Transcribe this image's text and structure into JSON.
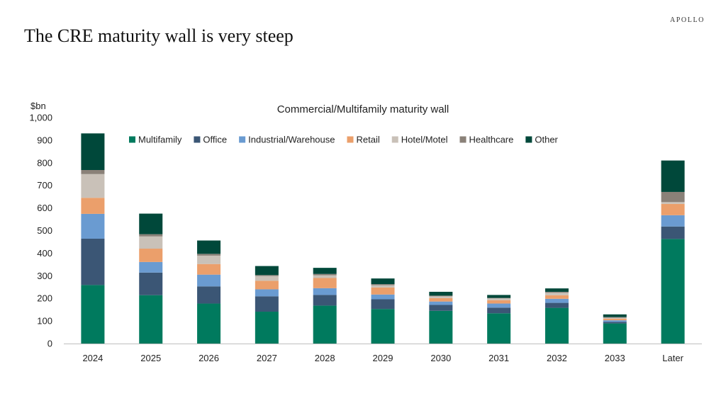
{
  "brand": "APOLLO",
  "slide_title": "The CRE maturity wall is very steep",
  "chart_data": {
    "type": "bar",
    "stacked": true,
    "title": "Commercial/Multifamily maturity wall",
    "ylabel": "$bn",
    "ylim": [
      0,
      1000
    ],
    "yticks": [
      0,
      100,
      200,
      300,
      400,
      500,
      600,
      700,
      800,
      900,
      1000
    ],
    "ytick_labels": [
      "0",
      "100",
      "200",
      "300",
      "400",
      "500",
      "600",
      "700",
      "800",
      "900",
      "1,000"
    ],
    "legend_position": "top",
    "categories": [
      "2024",
      "2025",
      "2026",
      "2027",
      "2028",
      "2029",
      "2030",
      "2031",
      "2032",
      "2033",
      "Later"
    ],
    "series": [
      {
        "name": "Multifamily",
        "color": "#007A5E",
        "values": [
          259,
          214,
          177,
          141,
          168,
          153,
          145,
          134,
          158,
          89,
          463
        ]
      },
      {
        "name": "Office",
        "color": "#3B5675",
        "values": [
          205,
          100,
          76,
          68,
          47,
          43,
          26,
          25,
          22,
          7,
          55
        ]
      },
      {
        "name": "Industrial/Warehouse",
        "color": "#6A9BD1",
        "values": [
          110,
          47,
          52,
          31,
          30,
          21,
          15,
          18,
          18,
          7,
          50
        ]
      },
      {
        "name": "Retail",
        "color": "#EB9F6B",
        "values": [
          71,
          59,
          47,
          38,
          45,
          31,
          15,
          15,
          16,
          7,
          50
        ]
      },
      {
        "name": "Hotel/Motel",
        "color": "#C9C1B8",
        "values": [
          105,
          54,
          37,
          21,
          12,
          10,
          8,
          8,
          11,
          4,
          8
        ]
      },
      {
        "name": "Healthcare",
        "color": "#8A8178",
        "values": [
          18,
          10,
          8,
          4,
          6,
          5,
          3,
          2,
          4,
          3,
          45
        ]
      },
      {
        "name": "Other",
        "color": "#00483A",
        "values": [
          162,
          91,
          59,
          40,
          27,
          25,
          17,
          13,
          15,
          12,
          139
        ]
      }
    ]
  }
}
